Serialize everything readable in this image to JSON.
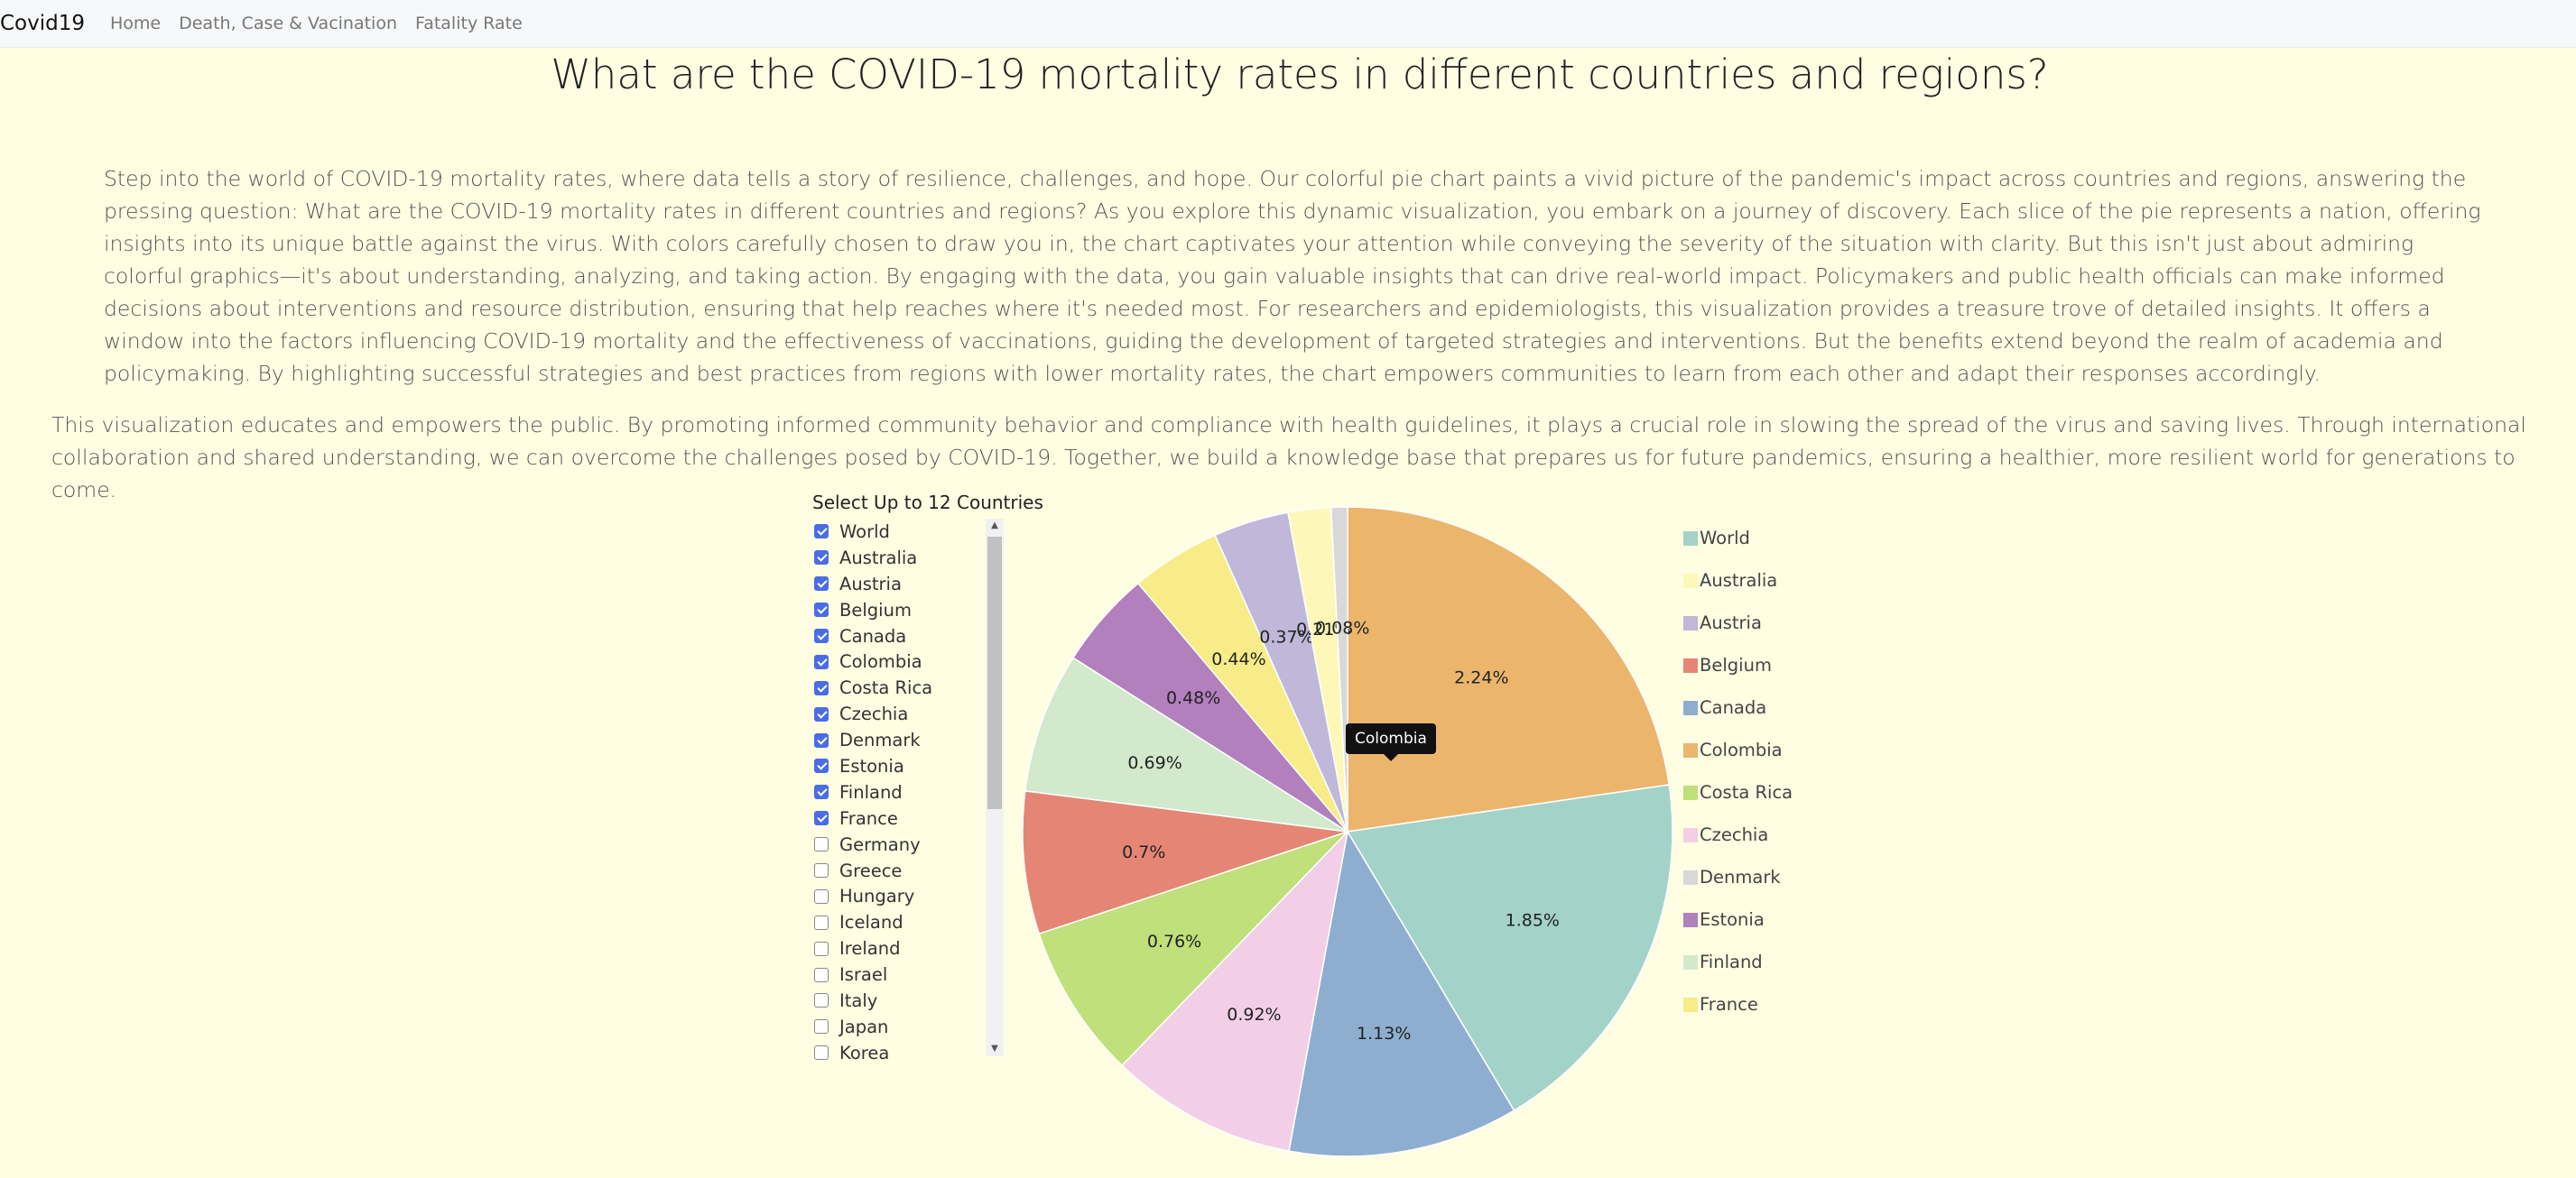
{
  "nav": {
    "brand": "Covid19",
    "links": [
      "Home",
      "Death, Case & Vacination",
      "Fatality Rate"
    ]
  },
  "page": {
    "title": "What are the COVID-19 mortality rates in different countries and regions?",
    "paragraph1": "Step into the world of COVID-19 mortality rates, where data tells a story of resilience, challenges, and hope. Our colorful pie chart paints a vivid picture of the pandemic's impact across countries and regions, answering the pressing question: What are the COVID-19 mortality rates in different countries and regions? As you explore this dynamic visualization, you embark on a journey of discovery. Each slice of the pie represents a nation, offering insights into its unique battle against the virus. With colors carefully chosen to draw you in, the chart captivates your attention while conveying the severity of the situation with clarity. But this isn't just about admiring colorful graphics—it's about understanding, analyzing, and taking action. By engaging with the data, you gain valuable insights that can drive real-world impact. Policymakers and public health officials can make informed decisions about interventions and resource distribution, ensuring that help reaches where it's needed most. For researchers and epidemiologists, this visualization provides a treasure trove of detailed insights. It offers a window into the factors influencing COVID-19 mortality and the effectiveness of vaccinations, guiding the development of targeted strategies and interventions. But the benefits extend beyond the realm of academia and policymaking. By highlighting successful strategies and best practices from regions with lower mortality rates, the chart empowers communities to learn from each other and adapt their responses accordingly.",
    "paragraph2": "This visualization educates and empowers the public. By promoting informed community behavior and compliance with health guidelines, it plays a crucial role in slowing the spread of the virus and saving lives. Through international collaboration and shared understanding, we can overcome the challenges posed by COVID-19. Together, we build a knowledge base that prepares us for future pandemics, ensuring a healthier, more resilient world for generations to come."
  },
  "selector": {
    "title": "Select Up to 12 Countries",
    "countries": [
      {
        "name": "World",
        "checked": true
      },
      {
        "name": "Australia",
        "checked": true
      },
      {
        "name": "Austria",
        "checked": true
      },
      {
        "name": "Belgium",
        "checked": true
      },
      {
        "name": "Canada",
        "checked": true
      },
      {
        "name": "Colombia",
        "checked": true
      },
      {
        "name": "Costa Rica",
        "checked": true
      },
      {
        "name": "Czechia",
        "checked": true
      },
      {
        "name": "Denmark",
        "checked": true
      },
      {
        "name": "Estonia",
        "checked": true
      },
      {
        "name": "Finland",
        "checked": true
      },
      {
        "name": "France",
        "checked": true
      },
      {
        "name": "Germany",
        "checked": false
      },
      {
        "name": "Greece",
        "checked": false
      },
      {
        "name": "Hungary",
        "checked": false
      },
      {
        "name": "Iceland",
        "checked": false
      },
      {
        "name": "Ireland",
        "checked": false
      },
      {
        "name": "Israel",
        "checked": false
      },
      {
        "name": "Italy",
        "checked": false
      },
      {
        "name": "Japan",
        "checked": false
      },
      {
        "name": "Korea",
        "checked": false
      }
    ]
  },
  "tooltip": "Colombia",
  "chart_data": {
    "type": "pie",
    "legend_position": "right",
    "slices": [
      {
        "name": "Colombia",
        "value": 2.24,
        "label": "2.24%",
        "color": "#ebb66c"
      },
      {
        "name": "World",
        "value": 1.85,
        "label": "1.85%",
        "color": "#a3d2c8"
      },
      {
        "name": "Canada",
        "value": 1.13,
        "label": "1.13%",
        "color": "#8eaed0"
      },
      {
        "name": "Czechia",
        "value": 0.92,
        "label": "0.92%",
        "color": "#f2cfe6"
      },
      {
        "name": "Costa Rica",
        "value": 0.76,
        "label": "0.76%",
        "color": "#bfe07a"
      },
      {
        "name": "Belgium",
        "value": 0.7,
        "label": "0.7%",
        "color": "#e58675"
      },
      {
        "name": "Finland",
        "value": 0.69,
        "label": "0.69%",
        "color": "#d2e9cc"
      },
      {
        "name": "Estonia",
        "value": 0.48,
        "label": "0.48%",
        "color": "#b180bd"
      },
      {
        "name": "France",
        "value": 0.44,
        "label": "0.44%",
        "color": "#f7ec88"
      },
      {
        "name": "Austria",
        "value": 0.37,
        "label": "0.37%",
        "color": "#bfb8d9"
      },
      {
        "name": "Australia",
        "value": 0.21,
        "label": "0.21%",
        "color": "#fdf8b8"
      },
      {
        "name": "Denmark",
        "value": 0.08,
        "label": "0.08%",
        "color": "#d8d8d8"
      }
    ],
    "legend": [
      {
        "name": "World",
        "color": "#a3d2c8"
      },
      {
        "name": "Australia",
        "color": "#fdf8b8"
      },
      {
        "name": "Austria",
        "color": "#bfb8d9"
      },
      {
        "name": "Belgium",
        "color": "#e58675"
      },
      {
        "name": "Canada",
        "color": "#8eaed0"
      },
      {
        "name": "Colombia",
        "color": "#ebb66c"
      },
      {
        "name": "Costa Rica",
        "color": "#bfe07a"
      },
      {
        "name": "Czechia",
        "color": "#f2cfe6"
      },
      {
        "name": "Denmark",
        "color": "#d8d8d8"
      },
      {
        "name": "Estonia",
        "color": "#b180bd"
      },
      {
        "name": "Finland",
        "color": "#d2e9cc"
      },
      {
        "name": "France",
        "color": "#f7ec88"
      }
    ]
  }
}
